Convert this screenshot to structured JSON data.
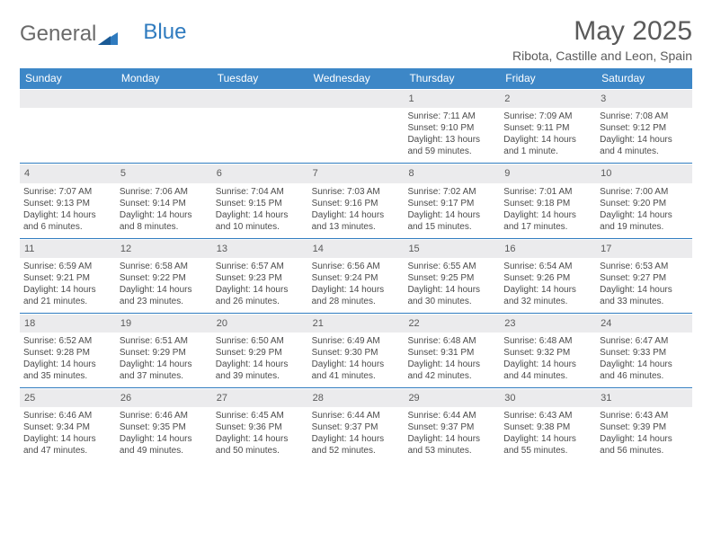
{
  "brand": {
    "part1": "General",
    "part2": "Blue"
  },
  "title": "May 2025",
  "subtitle": "Ribota, Castille and Leon, Spain",
  "colors": {
    "header_bg": "#3d87c7",
    "header_text": "#ffffff",
    "date_bg": "#ebebed",
    "border": "#2f7bbf",
    "text": "#4b4b4b",
    "title_text": "#5a5a5a",
    "brand_gray": "#6a6a6a",
    "brand_blue": "#2f7bbf"
  },
  "typography": {
    "title_fontsize": 30,
    "subtitle_fontsize": 14,
    "dayhead_fontsize": 12,
    "cell_fontsize": 10
  },
  "layout": {
    "columns": 7,
    "rows": 5
  },
  "day_names": [
    "Sunday",
    "Monday",
    "Tuesday",
    "Wednesday",
    "Thursday",
    "Friday",
    "Saturday"
  ],
  "weeks": [
    [
      {
        "date": "",
        "sunrise": "",
        "sunset": "",
        "daylight": ""
      },
      {
        "date": "",
        "sunrise": "",
        "sunset": "",
        "daylight": ""
      },
      {
        "date": "",
        "sunrise": "",
        "sunset": "",
        "daylight": ""
      },
      {
        "date": "",
        "sunrise": "",
        "sunset": "",
        "daylight": ""
      },
      {
        "date": "1",
        "sunrise": "Sunrise: 7:11 AM",
        "sunset": "Sunset: 9:10 PM",
        "daylight": "Daylight: 13 hours and 59 minutes."
      },
      {
        "date": "2",
        "sunrise": "Sunrise: 7:09 AM",
        "sunset": "Sunset: 9:11 PM",
        "daylight": "Daylight: 14 hours and 1 minute."
      },
      {
        "date": "3",
        "sunrise": "Sunrise: 7:08 AM",
        "sunset": "Sunset: 9:12 PM",
        "daylight": "Daylight: 14 hours and 4 minutes."
      }
    ],
    [
      {
        "date": "4",
        "sunrise": "Sunrise: 7:07 AM",
        "sunset": "Sunset: 9:13 PM",
        "daylight": "Daylight: 14 hours and 6 minutes."
      },
      {
        "date": "5",
        "sunrise": "Sunrise: 7:06 AM",
        "sunset": "Sunset: 9:14 PM",
        "daylight": "Daylight: 14 hours and 8 minutes."
      },
      {
        "date": "6",
        "sunrise": "Sunrise: 7:04 AM",
        "sunset": "Sunset: 9:15 PM",
        "daylight": "Daylight: 14 hours and 10 minutes."
      },
      {
        "date": "7",
        "sunrise": "Sunrise: 7:03 AM",
        "sunset": "Sunset: 9:16 PM",
        "daylight": "Daylight: 14 hours and 13 minutes."
      },
      {
        "date": "8",
        "sunrise": "Sunrise: 7:02 AM",
        "sunset": "Sunset: 9:17 PM",
        "daylight": "Daylight: 14 hours and 15 minutes."
      },
      {
        "date": "9",
        "sunrise": "Sunrise: 7:01 AM",
        "sunset": "Sunset: 9:18 PM",
        "daylight": "Daylight: 14 hours and 17 minutes."
      },
      {
        "date": "10",
        "sunrise": "Sunrise: 7:00 AM",
        "sunset": "Sunset: 9:20 PM",
        "daylight": "Daylight: 14 hours and 19 minutes."
      }
    ],
    [
      {
        "date": "11",
        "sunrise": "Sunrise: 6:59 AM",
        "sunset": "Sunset: 9:21 PM",
        "daylight": "Daylight: 14 hours and 21 minutes."
      },
      {
        "date": "12",
        "sunrise": "Sunrise: 6:58 AM",
        "sunset": "Sunset: 9:22 PM",
        "daylight": "Daylight: 14 hours and 23 minutes."
      },
      {
        "date": "13",
        "sunrise": "Sunrise: 6:57 AM",
        "sunset": "Sunset: 9:23 PM",
        "daylight": "Daylight: 14 hours and 26 minutes."
      },
      {
        "date": "14",
        "sunrise": "Sunrise: 6:56 AM",
        "sunset": "Sunset: 9:24 PM",
        "daylight": "Daylight: 14 hours and 28 minutes."
      },
      {
        "date": "15",
        "sunrise": "Sunrise: 6:55 AM",
        "sunset": "Sunset: 9:25 PM",
        "daylight": "Daylight: 14 hours and 30 minutes."
      },
      {
        "date": "16",
        "sunrise": "Sunrise: 6:54 AM",
        "sunset": "Sunset: 9:26 PM",
        "daylight": "Daylight: 14 hours and 32 minutes."
      },
      {
        "date": "17",
        "sunrise": "Sunrise: 6:53 AM",
        "sunset": "Sunset: 9:27 PM",
        "daylight": "Daylight: 14 hours and 33 minutes."
      }
    ],
    [
      {
        "date": "18",
        "sunrise": "Sunrise: 6:52 AM",
        "sunset": "Sunset: 9:28 PM",
        "daylight": "Daylight: 14 hours and 35 minutes."
      },
      {
        "date": "19",
        "sunrise": "Sunrise: 6:51 AM",
        "sunset": "Sunset: 9:29 PM",
        "daylight": "Daylight: 14 hours and 37 minutes."
      },
      {
        "date": "20",
        "sunrise": "Sunrise: 6:50 AM",
        "sunset": "Sunset: 9:29 PM",
        "daylight": "Daylight: 14 hours and 39 minutes."
      },
      {
        "date": "21",
        "sunrise": "Sunrise: 6:49 AM",
        "sunset": "Sunset: 9:30 PM",
        "daylight": "Daylight: 14 hours and 41 minutes."
      },
      {
        "date": "22",
        "sunrise": "Sunrise: 6:48 AM",
        "sunset": "Sunset: 9:31 PM",
        "daylight": "Daylight: 14 hours and 42 minutes."
      },
      {
        "date": "23",
        "sunrise": "Sunrise: 6:48 AM",
        "sunset": "Sunset: 9:32 PM",
        "daylight": "Daylight: 14 hours and 44 minutes."
      },
      {
        "date": "24",
        "sunrise": "Sunrise: 6:47 AM",
        "sunset": "Sunset: 9:33 PM",
        "daylight": "Daylight: 14 hours and 46 minutes."
      }
    ],
    [
      {
        "date": "25",
        "sunrise": "Sunrise: 6:46 AM",
        "sunset": "Sunset: 9:34 PM",
        "daylight": "Daylight: 14 hours and 47 minutes."
      },
      {
        "date": "26",
        "sunrise": "Sunrise: 6:46 AM",
        "sunset": "Sunset: 9:35 PM",
        "daylight": "Daylight: 14 hours and 49 minutes."
      },
      {
        "date": "27",
        "sunrise": "Sunrise: 6:45 AM",
        "sunset": "Sunset: 9:36 PM",
        "daylight": "Daylight: 14 hours and 50 minutes."
      },
      {
        "date": "28",
        "sunrise": "Sunrise: 6:44 AM",
        "sunset": "Sunset: 9:37 PM",
        "daylight": "Daylight: 14 hours and 52 minutes."
      },
      {
        "date": "29",
        "sunrise": "Sunrise: 6:44 AM",
        "sunset": "Sunset: 9:37 PM",
        "daylight": "Daylight: 14 hours and 53 minutes."
      },
      {
        "date": "30",
        "sunrise": "Sunrise: 6:43 AM",
        "sunset": "Sunset: 9:38 PM",
        "daylight": "Daylight: 14 hours and 55 minutes."
      },
      {
        "date": "31",
        "sunrise": "Sunrise: 6:43 AM",
        "sunset": "Sunset: 9:39 PM",
        "daylight": "Daylight: 14 hours and 56 minutes."
      }
    ]
  ]
}
